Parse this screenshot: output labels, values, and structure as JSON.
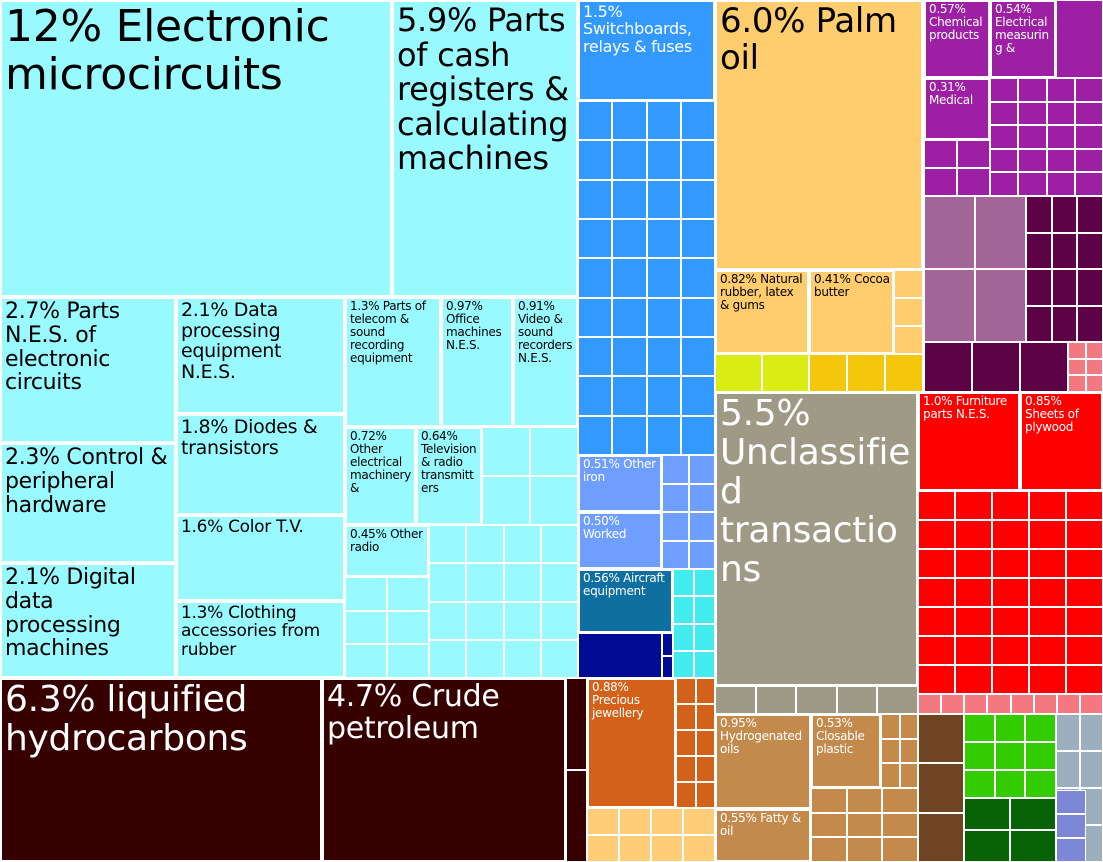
{
  "chart_data": {
    "type": "treemap",
    "title": "",
    "colors": {
      "electronics": "#98F9FF",
      "machinery": "#3199FF",
      "metals": "#6E9EFF",
      "transport": "#0E6FA0",
      "transport_light": "#42ECEE",
      "transport_dark": "#020B94",
      "vegetable_oils": "#FFCC6E",
      "vegetable_accent": "#D9EC13",
      "vegetable_gold": "#F5C70C",
      "chemicals": "#9D1FA4",
      "chemicals_light": "#A36598",
      "chemicals_dark": "#5E0247",
      "unclassified": "#9E9A86",
      "wood": "#FF0000",
      "wood_pink": "#F4787F",
      "minerals": "#360000",
      "precious": "#D3611A",
      "precious_light": "#FFCC77",
      "foodstuffs": "#C48A4C",
      "animal": "#6E4422",
      "vegetable_products": "#32CC00",
      "vegetable_products_dark": "#086306",
      "stone": "#9BAFBF",
      "stone_blue": "#7D87D5"
    },
    "items": [
      {
        "label": "12% Electronic microcircuits",
        "value": 12.0,
        "group": "electronics"
      },
      {
        "label": "5.9% Parts of cash registers & calculating machines",
        "value": 5.9,
        "group": "electronics"
      },
      {
        "label": "2.7% Parts N.E.S. of electronic circuits",
        "value": 2.7,
        "group": "electronics"
      },
      {
        "label": "2.3% Control & peripheral hardware",
        "value": 2.3,
        "group": "electronics"
      },
      {
        "label": "2.1% Digital data processing machines",
        "value": 2.1,
        "group": "electronics"
      },
      {
        "label": "2.1% Data processing equipment N.E.S.",
        "value": 2.1,
        "group": "electronics"
      },
      {
        "label": "1.8% Diodes & transistors",
        "value": 1.8,
        "group": "electronics"
      },
      {
        "label": "1.6% Color T.V.",
        "value": 1.6,
        "group": "electronics"
      },
      {
        "label": "1.3% Clothing accessories from rubber",
        "value": 1.3,
        "group": "electronics"
      },
      {
        "label": "1.3% Parts of telecom & sound recording equipment",
        "value": 1.3,
        "group": "electronics"
      },
      {
        "label": "0.97% Office machines N.E.S.",
        "value": 0.97,
        "group": "electronics"
      },
      {
        "label": "0.91% Video & sound recorders N.E.S.",
        "value": 0.91,
        "group": "electronics"
      },
      {
        "label": "0.72% Other electrical machinery &",
        "value": 0.72,
        "group": "electronics"
      },
      {
        "label": "0.64% Television & radio transmitters",
        "value": 0.64,
        "group": "electronics"
      },
      {
        "label": "0.45% Other radio",
        "value": 0.45,
        "group": "electronics"
      },
      {
        "label": "1.5% Switchboards, relays & fuses",
        "value": 1.5,
        "group": "machinery"
      },
      {
        "label": "0.51% Other iron",
        "value": 0.51,
        "group": "metals"
      },
      {
        "label": "0.50% Worked",
        "value": 0.5,
        "group": "metals"
      },
      {
        "label": "0.56% Aircraft equipment",
        "value": 0.56,
        "group": "transport"
      },
      {
        "label": "6.0% Palm oil",
        "value": 6.0,
        "group": "vegetable_oils"
      },
      {
        "label": "0.82% Natural rubber, latex & gums",
        "value": 0.82,
        "group": "vegetable_oils"
      },
      {
        "label": "0.41% Cocoa butter",
        "value": 0.41,
        "group": "vegetable_oils"
      },
      {
        "label": "0.57% Chemical products",
        "value": 0.57,
        "group": "chemicals"
      },
      {
        "label": "0.54% Electrical measuring &",
        "value": 0.54,
        "group": "chemicals"
      },
      {
        "label": "0.31% Medical",
        "value": 0.31,
        "group": "chemicals"
      },
      {
        "label": "5.5% Unclassified transactions",
        "value": 5.5,
        "group": "unclassified"
      },
      {
        "label": "1.0% Furniture parts N.E.S.",
        "value": 1.0,
        "group": "wood"
      },
      {
        "label": "0.85% Sheets of plywood",
        "value": 0.85,
        "group": "wood"
      },
      {
        "label": "6.3% liquified hydrocarbons",
        "value": 6.3,
        "group": "minerals"
      },
      {
        "label": "4.7% Crude petroleum",
        "value": 4.7,
        "group": "minerals"
      },
      {
        "label": "0.88% Precious jewellery",
        "value": 0.88,
        "group": "precious"
      },
      {
        "label": "0.95% Hydrogenated oils",
        "value": 0.95,
        "group": "foodstuffs"
      },
      {
        "label": "0.53% Closable plastic",
        "value": 0.53,
        "group": "foodstuffs"
      },
      {
        "label": "0.55% Fatty & oil",
        "value": 0.55,
        "group": "foodstuffs"
      }
    ]
  }
}
